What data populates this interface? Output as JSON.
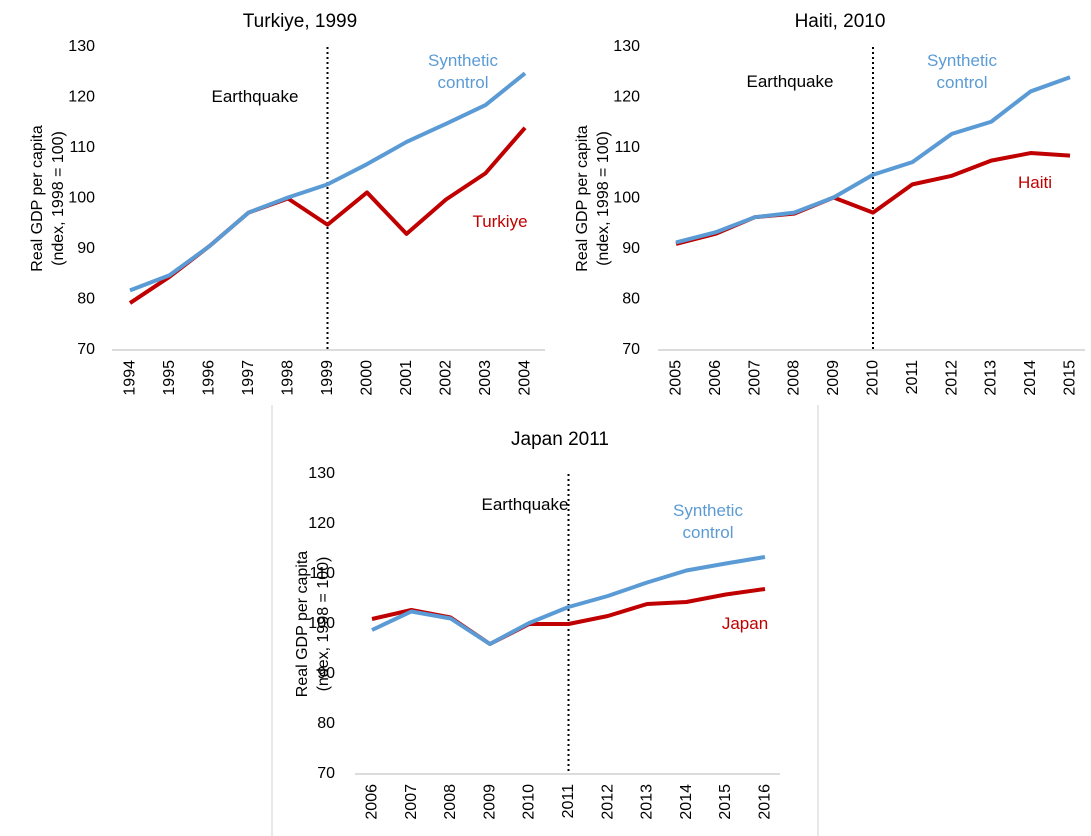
{
  "chart_data": [
    {
      "type": "line",
      "title": "Turkiye, 1999",
      "ylabel": [
        "Real GDP per capita",
        "(ndex, 1998 = 100)"
      ],
      "categories": [
        "1994",
        "1995",
        "1996",
        "1997",
        "1998",
        "1999",
        "2000",
        "2001",
        "2002",
        "2003",
        "2004"
      ],
      "event": "1999",
      "event_label": "Earthquake",
      "series": [
        {
          "name": "Turkiye",
          "color": "#c00000",
          "values": [
            79.3,
            84.5,
            90.5,
            97.2,
            100,
            94.8,
            101.2,
            93,
            99.8,
            105,
            114
          ]
        },
        {
          "name": "Synthetic control",
          "color": "#5b9bd5",
          "values": [
            81.8,
            84.8,
            90.5,
            97.2,
            100.2,
            102.8,
            106.8,
            111.2,
            114.8,
            118.5,
            124.8
          ]
        }
      ],
      "ylim": [
        70,
        130
      ],
      "yticks": [
        70,
        80,
        90,
        100,
        110,
        120,
        130
      ]
    },
    {
      "type": "line",
      "title": "Haiti, 2010",
      "ylabel": [
        "Real GDP per capita",
        "(ndex, 1998 = 100)"
      ],
      "categories": [
        "2005",
        "2006",
        "2007",
        "2008",
        "2009",
        "2010",
        "2011",
        "2012",
        "2013",
        "2014",
        "2015"
      ],
      "event": "2010",
      "event_label": "Earthquake",
      "series": [
        {
          "name": "Haiti",
          "color": "#c00000",
          "values": [
            91,
            93,
            96.3,
            97,
            100.2,
            97.2,
            102.8,
            104.5,
            107.5,
            109,
            108.5
          ]
        },
        {
          "name": "Synthetic control",
          "color": "#5b9bd5",
          "values": [
            91.3,
            93.3,
            96.3,
            97.2,
            100.2,
            104.7,
            107.2,
            112.8,
            115.2,
            121.2,
            124
          ]
        }
      ],
      "ylim": [
        70,
        130
      ],
      "yticks": [
        70,
        80,
        90,
        100,
        110,
        120,
        130
      ]
    },
    {
      "type": "line",
      "title": "Japan 2011",
      "ylabel": [
        "Real GDP per capita",
        "(ndex, 1998 = 100)"
      ],
      "categories": [
        "2006",
        "2007",
        "2008",
        "2009",
        "2010",
        "2011",
        "2012",
        "2013",
        "2014",
        "2015",
        "2016"
      ],
      "event": "2011",
      "event_label": "Earthquake",
      "series": [
        {
          "name": "Japan",
          "color": "#c00000",
          "values": [
            101,
            102.8,
            101.3,
            96,
            100,
            100,
            101.6,
            104,
            104.4,
            105.9,
            107
          ]
        },
        {
          "name": "Synthetic control",
          "color": "#5b9bd5",
          "values": [
            98.8,
            102.5,
            101.1,
            96,
            100.2,
            103.4,
            105.6,
            108.3,
            110.7,
            112.1,
            113.4
          ]
        }
      ],
      "ylim": [
        70,
        130
      ],
      "yticks": [
        70,
        80,
        90,
        100,
        110,
        120,
        130
      ]
    }
  ]
}
